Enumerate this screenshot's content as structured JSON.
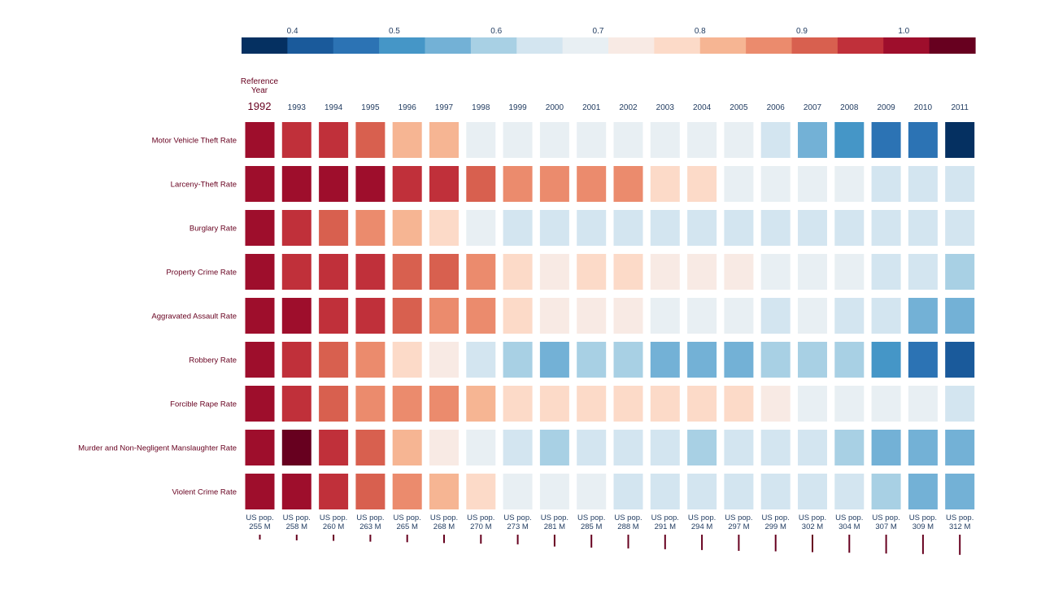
{
  "chart_data": {
    "type": "heatmap",
    "reference_label": "Reference Year",
    "reference_year": "1992",
    "colorbar": {
      "ticks": [
        "0.4",
        "0.5",
        "0.6",
        "0.7",
        "0.8",
        "0.9",
        "1.0"
      ],
      "tick_values": [
        0.4,
        0.5,
        0.6,
        0.7,
        0.8,
        0.9,
        1.0
      ],
      "range": [
        0.35,
        1.07
      ],
      "colors": [
        "#053061",
        "#1a5a9b",
        "#2c73b4",
        "#4596c7",
        "#73b1d6",
        "#a8d0e4",
        "#d3e5f0",
        "#e8eff3",
        "#f8eae4",
        "#fcdac8",
        "#f6b593",
        "#eb8b6d",
        "#d8604f",
        "#c0303a",
        "#9e0e2c",
        "#67001f"
      ]
    },
    "years": [
      "1993",
      "1994",
      "1995",
      "1996",
      "1997",
      "1998",
      "1999",
      "2000",
      "2001",
      "2002",
      "2003",
      "2004",
      "2005",
      "2006",
      "2007",
      "2008",
      "2009",
      "2010",
      "2011"
    ],
    "rows": [
      {
        "label": "Motor Vehicle Theft Rate",
        "values": [
          0.97,
          0.98,
          0.92,
          0.81,
          0.81,
          0.71,
          0.67,
          0.67,
          0.67,
          0.67,
          0.67,
          0.67,
          0.67,
          0.63,
          0.57,
          0.49,
          0.45,
          0.44,
          0.36
        ]
      },
      {
        "label": "Larceny-Theft Rate",
        "values": [
          1.0,
          1.0,
          1.0,
          0.98,
          0.97,
          0.89,
          0.85,
          0.85,
          0.85,
          0.85,
          0.76,
          0.76,
          0.7,
          0.71,
          0.71,
          0.71,
          0.66,
          0.66,
          0.63
        ]
      },
      {
        "label": "Burglary Rate",
        "values": [
          0.97,
          0.9,
          0.86,
          0.8,
          0.79,
          0.71,
          0.66,
          0.63,
          0.63,
          0.63,
          0.63,
          0.63,
          0.63,
          0.63,
          0.63,
          0.63,
          0.63,
          0.63,
          0.63
        ]
      },
      {
        "label": "Property Crime Rate",
        "values": [
          0.98,
          0.97,
          0.96,
          0.93,
          0.92,
          0.85,
          0.76,
          0.72,
          0.76,
          0.76,
          0.72,
          0.72,
          0.72,
          0.67,
          0.67,
          0.67,
          0.63,
          0.63,
          0.58
        ]
      },
      {
        "label": "Aggravated Assault Rate",
        "values": [
          1.0,
          0.97,
          0.96,
          0.93,
          0.88,
          0.85,
          0.77,
          0.72,
          0.72,
          0.72,
          0.67,
          0.67,
          0.67,
          0.66,
          0.67,
          0.63,
          0.63,
          0.57,
          0.53
        ]
      },
      {
        "label": "Robbery Rate",
        "values": [
          0.98,
          0.93,
          0.88,
          0.77,
          0.72,
          0.63,
          0.58,
          0.53,
          0.58,
          0.58,
          0.53,
          0.53,
          0.53,
          0.58,
          0.58,
          0.58,
          0.49,
          0.45,
          0.43
        ]
      },
      {
        "label": "Forcible Rape Rate",
        "values": [
          0.98,
          0.92,
          0.88,
          0.87,
          0.88,
          0.84,
          0.77,
          0.77,
          0.77,
          0.77,
          0.77,
          0.77,
          0.78,
          0.72,
          0.71,
          0.71,
          0.67,
          0.67,
          0.63
        ]
      },
      {
        "label": "Murder and Non-Negligent Manslaughter Rate",
        "values": [
          1.05,
          0.97,
          0.93,
          0.83,
          0.72,
          0.67,
          0.63,
          0.58,
          0.63,
          0.63,
          0.63,
          0.58,
          0.63,
          0.63,
          0.63,
          0.58,
          0.53,
          0.53,
          0.53
        ]
      },
      {
        "label": "Violent Crime Rate",
        "values": [
          1.0,
          0.97,
          0.92,
          0.88,
          0.83,
          0.76,
          0.67,
          0.67,
          0.67,
          0.66,
          0.63,
          0.63,
          0.63,
          0.63,
          0.63,
          0.63,
          0.58,
          0.53,
          0.53
        ]
      }
    ],
    "population_labels": [
      {
        "line1": "US pop.",
        "line2": "255 M",
        "value": 255
      },
      {
        "line1": "US pop.",
        "line2": "258 M",
        "value": 258
      },
      {
        "line1": "US pop.",
        "line2": "260 M",
        "value": 260
      },
      {
        "line1": "US pop.",
        "line2": "263 M",
        "value": 263
      },
      {
        "line1": "US pop.",
        "line2": "265 M",
        "value": 265
      },
      {
        "line1": "US pop.",
        "line2": "268 M",
        "value": 268
      },
      {
        "line1": "US pop.",
        "line2": "270 M",
        "value": 270
      },
      {
        "line1": "US pop.",
        "line2": "273 M",
        "value": 273
      },
      {
        "line1": "US pop.",
        "line2": "281 M",
        "value": 281
      },
      {
        "line1": "US pop.",
        "line2": "285 M",
        "value": 285
      },
      {
        "line1": "US pop.",
        "line2": "288 M",
        "value": 288
      },
      {
        "line1": "US pop.",
        "line2": "291 M",
        "value": 291
      },
      {
        "line1": "US pop.",
        "line2": "294 M",
        "value": 294
      },
      {
        "line1": "US pop.",
        "line2": "297 M",
        "value": 297
      },
      {
        "line1": "US pop.",
        "line2": "299 M",
        "value": 299
      },
      {
        "line1": "US pop.",
        "line2": "302 M",
        "value": 302
      },
      {
        "line1": "US pop.",
        "line2": "304 M",
        "value": 304
      },
      {
        "line1": "US pop.",
        "line2": "307 M",
        "value": 307
      },
      {
        "line1": "US pop.",
        "line2": "309 M",
        "value": 309
      },
      {
        "line1": "US pop.",
        "line2": "312 M",
        "value": 312
      }
    ],
    "text_color": "#1f3a5f",
    "label_color": "#67001f",
    "reference_color": "#9e0e2c"
  }
}
